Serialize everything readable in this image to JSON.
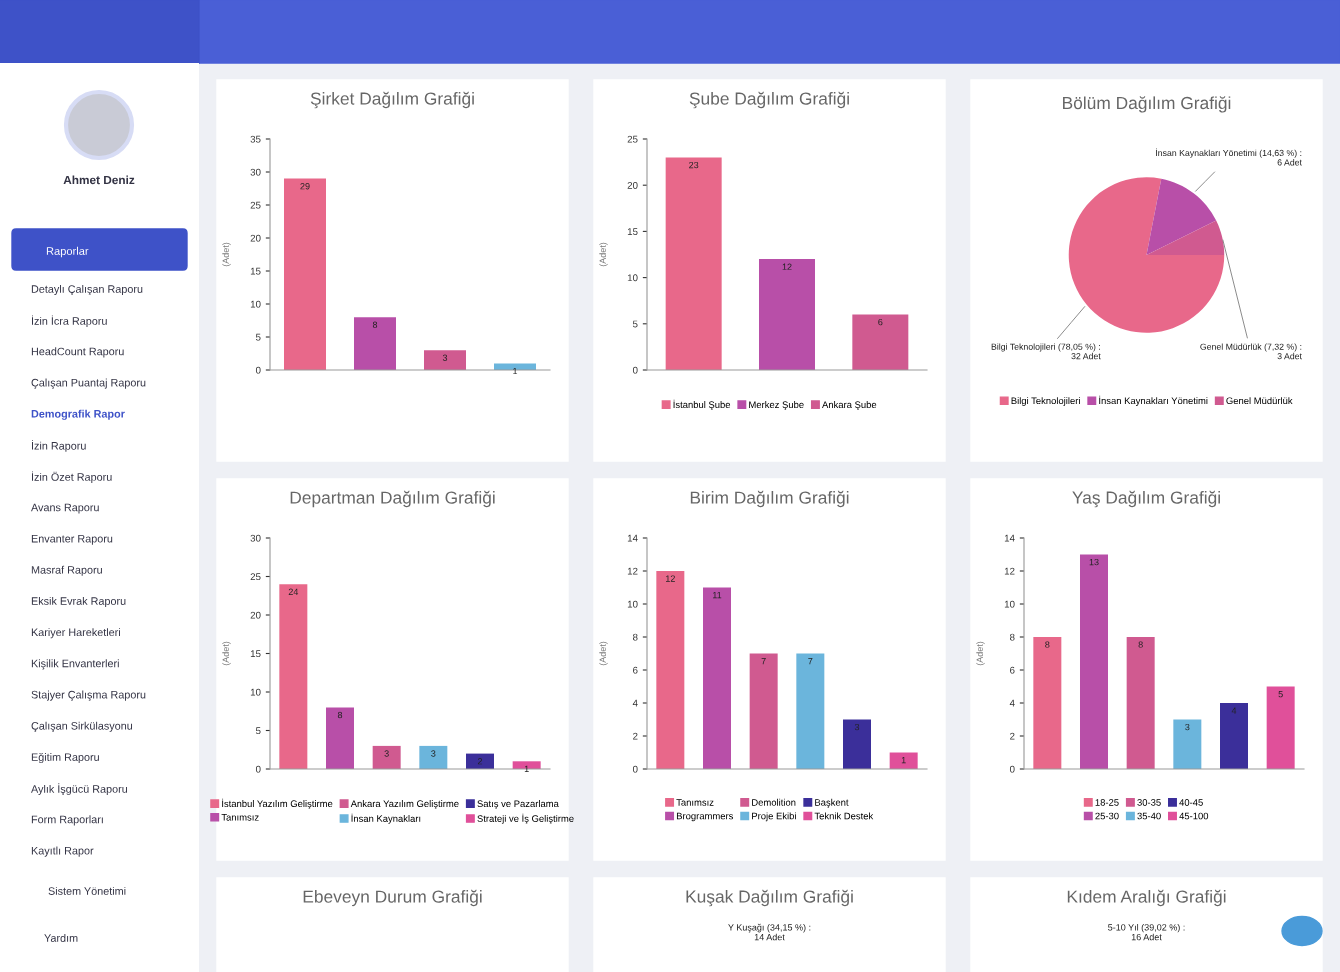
{
  "chart_data": [
    {
      "type": "other",
      "annotations": [
        "Ahmet Deniz",
        "Raporlar",
        "Detaylı Çalışan Raporu",
        "İzin İcra Raporu",
        "HeadCount Raporu",
        "Çalışan Puantaj Raporu",
        "Demografik Rapor",
        "İzin Raporu",
        "İzin Özet Raporu",
        "Avans Raporu",
        "Envanter Raporu",
        "Masraf Raporu",
        "Eksik Evrak Raporu",
        "Kariyer Hareketleri",
        "Kişilik Envanterleri",
        "Stajyer Çalışma Raporu",
        "Çalışan Sirkülasyonu",
        "Eğitim Raporu",
        "Aylık İşgücü Raporu",
        "Form Raporları",
        "Kayıtlı Rapor",
        "Sistem Yönetimi",
        "Yardım"
      ]
    },
    {
      "type": "bar",
      "title": "Şirket Dağılım Grafiği",
      "ylabel": "(Adet)",
      "categories": [
        null,
        null,
        null,
        null
      ],
      "values": [
        29,
        8,
        3,
        1
      ],
      "colors": [
        "#e8688a",
        "#b84fa8",
        "#d05a90",
        "#6bb5dc"
      ],
      "ylim": [
        0,
        35
      ],
      "yticks": [
        0,
        5,
        10,
        15,
        20,
        25,
        30,
        35
      ],
      "data_labels": true
    },
    {
      "type": "bar",
      "title": "Şube Dağılım Grafiği",
      "ylabel": "(Adet)",
      "categories": [
        null,
        null,
        null
      ],
      "stacked": true,
      "series": [
        {
          "name": "İstanbul Şube",
          "color": "#e8688a",
          "values": [
            23,
            null,
            null
          ]
        },
        {
          "name": "Merkez Şube",
          "color": "#b84fa8",
          "values": [
            null,
            12,
            null
          ]
        },
        {
          "name": "Ankara Şube",
          "color": "#d05a90",
          "values": [
            null,
            null,
            6
          ]
        }
      ],
      "ylim": [
        0,
        25
      ],
      "yticks": [
        0,
        5,
        10,
        15,
        20,
        25
      ],
      "data_labels": true,
      "legend": "bottom"
    },
    {
      "type": "pie",
      "title": "Bölüm Dağılım Grafiği",
      "categories": [
        "Bilgi Teknolojileri",
        "İnsan Kaynakları Yönetimi",
        "Genel Müdürlük"
      ],
      "values": [
        32,
        6,
        3
      ],
      "colors": [
        "#e8688a",
        "#b84fa8",
        "#d05a90"
      ],
      "value_labels": [
        "Bilgi Teknolojileri (78,05 %) :\n32 Adet",
        "İnsan Kaynakları Yönetimi (14,63 %) :\n6 Adet",
        "Genel Müdürlük (7,32 %) :\n3 Adet"
      ],
      "legend": "bottom"
    },
    {
      "type": "bar",
      "title": "Departman Dağılım Grafiği",
      "ylabel": "(Adet)",
      "categories": [
        null,
        null,
        null,
        null,
        null,
        null
      ],
      "stacked": true,
      "series": [
        {
          "name": "İstanbul Yazılım Geliştirme",
          "color": "#e8688a",
          "values": [
            24,
            null,
            null,
            null,
            null,
            null
          ]
        },
        {
          "name": "Tanımsız",
          "color": "#b84fa8",
          "values": [
            null,
            8,
            null,
            null,
            null,
            null
          ]
        },
        {
          "name": "Ankara Yazılım Geliştirme",
          "color": "#d05a90",
          "values": [
            null,
            null,
            3,
            null,
            null,
            null
          ]
        },
        {
          "name": "İnsan Kaynakları",
          "color": "#6bb5dc",
          "values": [
            null,
            null,
            null,
            3,
            null,
            null
          ]
        },
        {
          "name": "Satış ve Pazarlama",
          "color": "#3b2f9a",
          "values": [
            null,
            null,
            null,
            null,
            2,
            null
          ]
        },
        {
          "name": "Strateji ve İş Geliştirme",
          "color": "#e0509a",
          "values": [
            null,
            null,
            null,
            null,
            null,
            1
          ]
        }
      ],
      "ylim": [
        0,
        30
      ],
      "yticks": [
        0,
        5,
        10,
        15,
        20,
        25,
        30
      ],
      "data_labels": true,
      "legend": "bottom"
    },
    {
      "type": "bar",
      "title": "Birim Dağılım Grafiği",
      "ylabel": "(Adet)",
      "categories": [
        null,
        null,
        null,
        null,
        null,
        null
      ],
      "stacked": true,
      "series": [
        {
          "name": "Tanımsız",
          "color": "#e8688a",
          "values": [
            12,
            null,
            null,
            null,
            null,
            null
          ]
        },
        {
          "name": "Brogrammers",
          "color": "#b84fa8",
          "values": [
            null,
            11,
            null,
            null,
            null,
            null
          ]
        },
        {
          "name": "Demolition",
          "color": "#d05a90",
          "values": [
            null,
            null,
            7,
            null,
            null,
            null
          ]
        },
        {
          "name": "Proje Ekibi",
          "color": "#6bb5dc",
          "values": [
            null,
            null,
            null,
            7,
            null,
            null
          ]
        },
        {
          "name": "Başkent",
          "color": "#3b2f9a",
          "values": [
            null,
            null,
            null,
            null,
            3,
            null
          ]
        },
        {
          "name": "Teknik Destek",
          "color": "#e0509a",
          "values": [
            null,
            null,
            null,
            null,
            null,
            1
          ]
        }
      ],
      "ylim": [
        0,
        14
      ],
      "yticks": [
        0,
        2,
        4,
        6,
        8,
        10,
        12,
        14
      ],
      "data_labels": true,
      "legend": "bottom"
    },
    {
      "type": "bar",
      "title": "Yaş Dağılım Grafiği",
      "ylabel": "(Adet)",
      "categories": [
        null,
        null,
        null,
        null,
        null,
        null
      ],
      "stacked": true,
      "series": [
        {
          "name": "18-25",
          "color": "#e8688a",
          "values": [
            8,
            null,
            null,
            null,
            null,
            null
          ]
        },
        {
          "name": "25-30",
          "color": "#b84fa8",
          "values": [
            null,
            13,
            null,
            null,
            null,
            null
          ]
        },
        {
          "name": "30-35",
          "color": "#d05a90",
          "values": [
            null,
            null,
            8,
            null,
            null,
            null
          ]
        },
        {
          "name": "35-40",
          "color": "#6bb5dc",
          "values": [
            null,
            null,
            null,
            3,
            null,
            null
          ]
        },
        {
          "name": "40-45",
          "color": "#3b2f9a",
          "values": [
            null,
            null,
            null,
            null,
            4,
            null
          ]
        },
        {
          "name": "45-100",
          "color": "#e0509a",
          "values": [
            null,
            null,
            null,
            null,
            null,
            5
          ]
        }
      ],
      "ylim": [
        0,
        14
      ],
      "yticks": [
        0,
        2,
        4,
        6,
        8,
        10,
        12,
        14
      ],
      "data_labels": true,
      "legend": "bottom"
    },
    {
      "type": "other",
      "title": "Ebeveyn Durum Grafiği"
    },
    {
      "type": "other",
      "title": "Kuşak Dağılım Grafiği",
      "annotations": [
        "Y Kuşağı (34,15 %) :\n14 Adet"
      ]
    },
    {
      "type": "other",
      "title": "Kıdem Aralığı Grafiği",
      "annotations": [
        "5-10 Yıl (39,02 %) :\n16 Adet"
      ]
    }
  ]
}
